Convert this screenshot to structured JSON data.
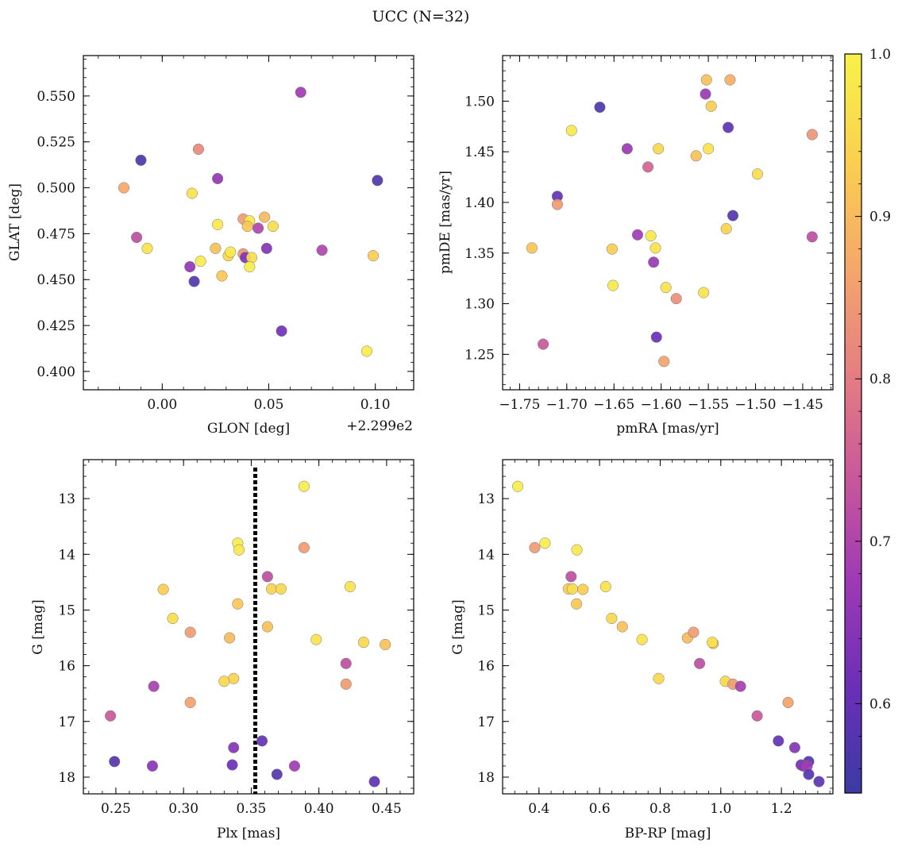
{
  "figure": {
    "title": "UCC (N=32)"
  },
  "colorbar": {
    "min": 0.545,
    "max": 1.0,
    "ticks": [
      0.6,
      0.7,
      0.8,
      0.9,
      1.0
    ],
    "tick_labels": [
      "0.6",
      "0.7",
      "0.8",
      "0.9",
      "1.0"
    ],
    "colormap": "plasma",
    "stops": [
      "#3b3ba3",
      "#6a2fb7",
      "#9e39b5",
      "#c9589a",
      "#e57f82",
      "#f5a86a",
      "#fad04f",
      "#f7f24a"
    ]
  },
  "chart_data": [
    {
      "type": "scatter",
      "id": "glon_glat",
      "xlabel": "GLON [deg]",
      "ylabel": "GLAT [deg]",
      "offset_text": "+2.299e2",
      "xlim": [
        -0.037,
        0.118
      ],
      "ylim": [
        0.39,
        0.572
      ],
      "x_ticks": [
        0.0,
        0.05,
        0.1
      ],
      "x_tick_labels": [
        "0.00",
        "0.05",
        "0.10"
      ],
      "y_ticks": [
        0.4,
        0.425,
        0.45,
        0.475,
        0.5,
        0.525,
        0.55
      ],
      "y_tick_labels": [
        "0.400",
        "0.425",
        "0.450",
        "0.475",
        "0.500",
        "0.525",
        "0.550"
      ],
      "invert_y": false,
      "points": [
        {
          "x": 0.065,
          "y": 0.552,
          "c": 0.68
        },
        {
          "x": -0.01,
          "y": 0.515,
          "c": 0.56
        },
        {
          "x": 0.017,
          "y": 0.521,
          "c": 0.82
        },
        {
          "x": 0.026,
          "y": 0.505,
          "c": 0.66
        },
        {
          "x": 0.101,
          "y": 0.504,
          "c": 0.57
        },
        {
          "x": -0.018,
          "y": 0.5,
          "c": 0.87
        },
        {
          "x": 0.014,
          "y": 0.497,
          "c": 0.97
        },
        {
          "x": -0.012,
          "y": 0.473,
          "c": 0.72
        },
        {
          "x": -0.007,
          "y": 0.467,
          "c": 0.97
        },
        {
          "x": 0.026,
          "y": 0.48,
          "c": 0.98
        },
        {
          "x": 0.038,
          "y": 0.483,
          "c": 0.85
        },
        {
          "x": 0.041,
          "y": 0.482,
          "c": 0.98
        },
        {
          "x": 0.04,
          "y": 0.479,
          "c": 0.92
        },
        {
          "x": 0.048,
          "y": 0.484,
          "c": 0.9
        },
        {
          "x": 0.052,
          "y": 0.479,
          "c": 0.96
        },
        {
          "x": 0.045,
          "y": 0.478,
          "c": 0.7
        },
        {
          "x": 0.025,
          "y": 0.467,
          "c": 0.91
        },
        {
          "x": 0.031,
          "y": 0.463,
          "c": 0.95
        },
        {
          "x": 0.032,
          "y": 0.465,
          "c": 0.98
        },
        {
          "x": 0.038,
          "y": 0.464,
          "c": 0.84
        },
        {
          "x": 0.039,
          "y": 0.462,
          "c": 0.64
        },
        {
          "x": 0.042,
          "y": 0.462,
          "c": 0.96
        },
        {
          "x": 0.041,
          "y": 0.457,
          "c": 0.99
        },
        {
          "x": 0.049,
          "y": 0.467,
          "c": 0.64
        },
        {
          "x": 0.075,
          "y": 0.466,
          "c": 0.7
        },
        {
          "x": 0.099,
          "y": 0.463,
          "c": 0.93
        },
        {
          "x": 0.018,
          "y": 0.46,
          "c": 0.99
        },
        {
          "x": 0.013,
          "y": 0.457,
          "c": 0.66
        },
        {
          "x": 0.028,
          "y": 0.452,
          "c": 0.92
        },
        {
          "x": 0.015,
          "y": 0.449,
          "c": 0.58
        },
        {
          "x": 0.056,
          "y": 0.422,
          "c": 0.62
        },
        {
          "x": 0.096,
          "y": 0.411,
          "c": 0.99
        }
      ]
    },
    {
      "type": "scatter",
      "id": "pmra_pmde",
      "xlabel": "pmRA [mas/yr]",
      "ylabel": "pmDE [mas/yr]",
      "xlim": [
        -1.768,
        -1.418
      ],
      "ylim": [
        1.215,
        1.545
      ],
      "x_ticks": [
        -1.75,
        -1.7,
        -1.65,
        -1.6,
        -1.55,
        -1.5,
        -1.45
      ],
      "x_tick_labels": [
        "−1.75",
        "−1.70",
        "−1.65",
        "−1.60",
        "−1.55",
        "−1.50",
        "−1.45"
      ],
      "y_ticks": [
        1.25,
        1.3,
        1.35,
        1.4,
        1.45,
        1.5
      ],
      "y_tick_labels": [
        "1.25",
        "1.30",
        "1.35",
        "1.40",
        "1.45",
        "1.50"
      ],
      "invert_y": false,
      "points": [
        {
          "x": -1.552,
          "y": 1.521,
          "c": 0.91
        },
        {
          "x": -1.527,
          "y": 1.521,
          "c": 0.88
        },
        {
          "x": -1.553,
          "y": 1.507,
          "c": 0.67
        },
        {
          "x": -1.547,
          "y": 1.495,
          "c": 0.93
        },
        {
          "x": -1.665,
          "y": 1.494,
          "c": 0.57
        },
        {
          "x": -1.529,
          "y": 1.474,
          "c": 0.59
        },
        {
          "x": -1.695,
          "y": 1.471,
          "c": 0.98
        },
        {
          "x": -1.44,
          "y": 1.467,
          "c": 0.84
        },
        {
          "x": -1.636,
          "y": 1.453,
          "c": 0.67
        },
        {
          "x": -1.603,
          "y": 1.453,
          "c": 0.95
        },
        {
          "x": -1.55,
          "y": 1.453,
          "c": 0.97
        },
        {
          "x": -1.563,
          "y": 1.446,
          "c": 0.91
        },
        {
          "x": -1.614,
          "y": 1.435,
          "c": 0.76
        },
        {
          "x": -1.498,
          "y": 1.428,
          "c": 0.96
        },
        {
          "x": -1.71,
          "y": 1.406,
          "c": 0.6
        },
        {
          "x": -1.71,
          "y": 1.398,
          "c": 0.85
        },
        {
          "x": -1.524,
          "y": 1.387,
          "c": 0.58
        },
        {
          "x": -1.531,
          "y": 1.374,
          "c": 0.94
        },
        {
          "x": -1.625,
          "y": 1.368,
          "c": 0.68
        },
        {
          "x": -1.611,
          "y": 1.367,
          "c": 0.98
        },
        {
          "x": -1.44,
          "y": 1.366,
          "c": 0.72
        },
        {
          "x": -1.737,
          "y": 1.355,
          "c": 0.92
        },
        {
          "x": -1.652,
          "y": 1.354,
          "c": 0.93
        },
        {
          "x": -1.606,
          "y": 1.355,
          "c": 0.97
        },
        {
          "x": -1.608,
          "y": 1.341,
          "c": 0.67
        },
        {
          "x": -1.651,
          "y": 1.318,
          "c": 0.98
        },
        {
          "x": -1.595,
          "y": 1.316,
          "c": 0.97
        },
        {
          "x": -1.555,
          "y": 1.311,
          "c": 0.97
        },
        {
          "x": -1.584,
          "y": 1.305,
          "c": 0.83
        },
        {
          "x": -1.725,
          "y": 1.26,
          "c": 0.74
        },
        {
          "x": -1.605,
          "y": 1.267,
          "c": 0.61
        },
        {
          "x": -1.597,
          "y": 1.243,
          "c": 0.86
        }
      ]
    },
    {
      "type": "scatter",
      "id": "plx_g",
      "xlabel": "Plx [mas]",
      "ylabel": "G [mag]",
      "xlim": [
        0.226,
        0.47
      ],
      "ylim": [
        12.3,
        18.3
      ],
      "x_ticks": [
        0.25,
        0.3,
        0.35,
        0.4,
        0.45
      ],
      "x_tick_labels": [
        "0.25",
        "0.30",
        "0.35",
        "0.40",
        "0.45"
      ],
      "y_ticks": [
        13,
        14,
        15,
        16,
        17,
        18
      ],
      "y_tick_labels": [
        "13",
        "14",
        "15",
        "16",
        "17",
        "18"
      ],
      "invert_y": true,
      "vline": 0.353,
      "points": [
        {
          "x": 0.389,
          "y": 12.78,
          "c": 0.99
        },
        {
          "x": 0.34,
          "y": 13.8,
          "c": 0.99
        },
        {
          "x": 0.341,
          "y": 13.92,
          "c": 0.98
        },
        {
          "x": 0.389,
          "y": 13.88,
          "c": 0.85
        },
        {
          "x": 0.362,
          "y": 14.4,
          "c": 0.72
        },
        {
          "x": 0.285,
          "y": 14.63,
          "c": 0.93
        },
        {
          "x": 0.365,
          "y": 14.62,
          "c": 0.94
        },
        {
          "x": 0.372,
          "y": 14.62,
          "c": 0.95
        },
        {
          "x": 0.423,
          "y": 14.58,
          "c": 0.97
        },
        {
          "x": 0.34,
          "y": 14.89,
          "c": 0.92
        },
        {
          "x": 0.292,
          "y": 15.15,
          "c": 0.96
        },
        {
          "x": 0.362,
          "y": 15.3,
          "c": 0.91
        },
        {
          "x": 0.305,
          "y": 15.4,
          "c": 0.85
        },
        {
          "x": 0.334,
          "y": 15.5,
          "c": 0.9
        },
        {
          "x": 0.398,
          "y": 15.53,
          "c": 0.97
        },
        {
          "x": 0.433,
          "y": 15.58,
          "c": 0.95
        },
        {
          "x": 0.449,
          "y": 15.62,
          "c": 0.91
        },
        {
          "x": 0.42,
          "y": 15.96,
          "c": 0.72
        },
        {
          "x": 0.337,
          "y": 16.23,
          "c": 0.94
        },
        {
          "x": 0.33,
          "y": 16.28,
          "c": 0.95
        },
        {
          "x": 0.42,
          "y": 16.33,
          "c": 0.85
        },
        {
          "x": 0.278,
          "y": 16.37,
          "c": 0.69
        },
        {
          "x": 0.305,
          "y": 16.66,
          "c": 0.86
        },
        {
          "x": 0.246,
          "y": 16.9,
          "c": 0.74
        },
        {
          "x": 0.358,
          "y": 17.35,
          "c": 0.6
        },
        {
          "x": 0.337,
          "y": 17.47,
          "c": 0.64
        },
        {
          "x": 0.249,
          "y": 17.72,
          "c": 0.58
        },
        {
          "x": 0.336,
          "y": 17.78,
          "c": 0.61
        },
        {
          "x": 0.277,
          "y": 17.8,
          "c": 0.65
        },
        {
          "x": 0.382,
          "y": 17.8,
          "c": 0.68
        },
        {
          "x": 0.369,
          "y": 17.95,
          "c": 0.58
        },
        {
          "x": 0.441,
          "y": 18.08,
          "c": 0.59
        }
      ]
    },
    {
      "type": "scatter",
      "id": "bprp_g",
      "xlabel": "BP-RP [mag]",
      "ylabel": "G [mag]",
      "xlim": [
        0.28,
        1.37
      ],
      "ylim": [
        12.3,
        18.3
      ],
      "x_ticks": [
        0.4,
        0.6,
        0.8,
        1.0,
        1.2
      ],
      "x_tick_labels": [
        "0.4",
        "0.6",
        "0.8",
        "1.0",
        "1.2"
      ],
      "y_ticks": [
        13,
        14,
        15,
        16,
        17,
        18
      ],
      "y_tick_labels": [
        "13",
        "14",
        "15",
        "16",
        "17",
        "18"
      ],
      "invert_y": true,
      "points": [
        {
          "x": 0.33,
          "y": 12.78,
          "c": 0.99
        },
        {
          "x": 0.386,
          "y": 13.88,
          "c": 0.85
        },
        {
          "x": 0.42,
          "y": 13.8,
          "c": 0.99
        },
        {
          "x": 0.525,
          "y": 13.92,
          "c": 0.98
        },
        {
          "x": 0.506,
          "y": 14.4,
          "c": 0.72
        },
        {
          "x": 0.497,
          "y": 14.62,
          "c": 0.93
        },
        {
          "x": 0.51,
          "y": 14.62,
          "c": 0.96
        },
        {
          "x": 0.545,
          "y": 14.63,
          "c": 0.93
        },
        {
          "x": 0.62,
          "y": 14.58,
          "c": 0.97
        },
        {
          "x": 0.524,
          "y": 14.89,
          "c": 0.92
        },
        {
          "x": 0.64,
          "y": 15.15,
          "c": 0.95
        },
        {
          "x": 0.675,
          "y": 15.3,
          "c": 0.91
        },
        {
          "x": 0.74,
          "y": 15.53,
          "c": 0.97
        },
        {
          "x": 0.89,
          "y": 15.5,
          "c": 0.9
        },
        {
          "x": 0.91,
          "y": 15.4,
          "c": 0.85
        },
        {
          "x": 0.975,
          "y": 15.6,
          "c": 0.92
        },
        {
          "x": 0.972,
          "y": 15.58,
          "c": 0.97
        },
        {
          "x": 0.93,
          "y": 15.96,
          "c": 0.72
        },
        {
          "x": 0.795,
          "y": 16.23,
          "c": 0.95
        },
        {
          "x": 1.015,
          "y": 16.28,
          "c": 0.95
        },
        {
          "x": 1.04,
          "y": 16.33,
          "c": 0.85
        },
        {
          "x": 1.065,
          "y": 16.37,
          "c": 0.69
        },
        {
          "x": 1.222,
          "y": 16.66,
          "c": 0.86
        },
        {
          "x": 1.12,
          "y": 16.9,
          "c": 0.74
        },
        {
          "x": 1.19,
          "y": 17.35,
          "c": 0.6
        },
        {
          "x": 1.244,
          "y": 17.47,
          "c": 0.64
        },
        {
          "x": 1.29,
          "y": 17.72,
          "c": 0.58
        },
        {
          "x": 1.265,
          "y": 17.78,
          "c": 0.61
        },
        {
          "x": 1.272,
          "y": 17.8,
          "c": 0.65
        },
        {
          "x": 1.285,
          "y": 17.8,
          "c": 0.68
        },
        {
          "x": 1.29,
          "y": 17.95,
          "c": 0.58
        },
        {
          "x": 1.324,
          "y": 18.08,
          "c": 0.59
        }
      ]
    }
  ]
}
